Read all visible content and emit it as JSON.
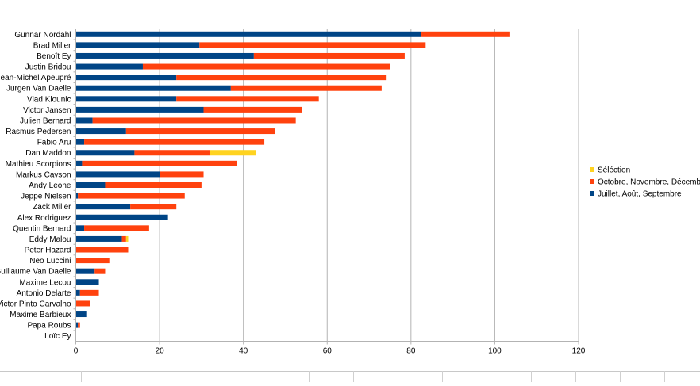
{
  "chart_data": {
    "type": "bar",
    "orientation": "horizontal",
    "stacked": true,
    "categories": [
      "Gunnar Nordahl",
      "Brad Miller",
      "Benoît Ey",
      "Justin Bridou",
      "Jean-Michel Apeupré",
      "Jurgen Van Daelle",
      "Vlad Klounic",
      "Victor Jansen",
      "Julien Bernard",
      "Rasmus Pedersen",
      "Fabio Aru",
      "Dan Maddon",
      "Mathieu Scorpions",
      "Markus Cavson",
      "Andy Leone",
      "Jeppe Nielsen",
      "Zack Miller",
      "Alex Rodriguez",
      "Quentin Bernard",
      "Eddy Malou",
      "Peter Hazard",
      "Neo Luccini",
      "Guillaume Van Daelle",
      "Maxime Lecou",
      "Antonio Delarte",
      "Victor Pinto Carvalho",
      "Maxime Barbieux",
      "Papa Roubs",
      "Loïc Ey"
    ],
    "series": [
      {
        "name": "Juillet, Août, Septembre",
        "color": "#004586",
        "values": [
          82.5,
          29.5,
          42.5,
          16,
          24,
          37,
          24,
          30.5,
          4,
          12,
          2,
          14,
          1.5,
          20,
          7,
          0.5,
          13,
          22,
          2,
          11,
          0,
          0,
          4.5,
          5.5,
          1,
          0,
          2.5,
          0.5,
          0
        ]
      },
      {
        "name": "Octobre, Novembre, Décembre",
        "color": "#ff420e",
        "values": [
          21,
          54,
          36,
          59,
          50,
          36,
          34,
          23.5,
          48.5,
          35.5,
          43,
          18,
          37,
          10.5,
          23,
          25.5,
          11,
          0,
          15.5,
          1,
          12.5,
          8,
          2.5,
          0,
          4.5,
          3.5,
          0,
          0.5,
          0
        ]
      },
      {
        "name": "Séléction",
        "color": "#ffd320",
        "values": [
          0,
          0,
          0,
          0,
          0,
          0,
          0,
          0,
          0,
          0,
          0,
          11,
          0,
          0,
          0,
          0,
          0,
          0,
          0,
          0.5,
          0,
          0,
          0,
          0,
          0,
          0,
          0,
          0,
          0
        ]
      }
    ],
    "xlim": [
      0,
      120
    ],
    "x_ticks": [
      "0",
      "20",
      "40",
      "60",
      "80",
      "100",
      "120"
    ],
    "grid": "vertical",
    "legend_position": "right",
    "legend_order": [
      "Séléction",
      "Octobre, Novembre, Décembre",
      "Juillet, Août, Septembre"
    ],
    "title": "",
    "xlabel": "",
    "ylabel": ""
  }
}
